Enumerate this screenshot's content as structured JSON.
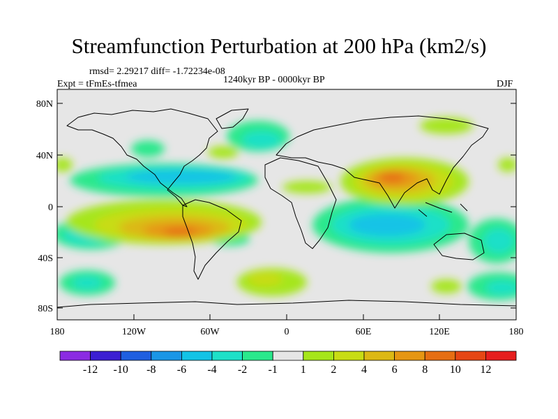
{
  "title": "Streamfunction Perturbation at 200 hPa (km2/s)",
  "stats": "rmsd= 2.29217 diff= -1.72234e-08",
  "experiment": "Expt = tFmEs-tfmea",
  "period": "1240kyr BP - 0000kyr BP",
  "season": "DJF",
  "y_axis_labels": [
    "80N",
    "40N",
    "0",
    "40S",
    "80S"
  ],
  "x_axis_labels": [
    "180",
    "120W",
    "60W",
    "0",
    "60E",
    "120E",
    "180"
  ],
  "colorbar": {
    "colors": [
      "#8b2be2",
      "#3c1fd2",
      "#1f5fe0",
      "#1a96e6",
      "#12c3e6",
      "#1ee0c8",
      "#2ae88c",
      "#e6e6e6",
      "#a6e61a",
      "#c8dc14",
      "#dcb814",
      "#e69612",
      "#e66e12",
      "#e64614",
      "#e61e1e"
    ],
    "labels": [
      "-12",
      "-10",
      "-8",
      "-6",
      "-4",
      "-2",
      "-1",
      "1",
      "2",
      "4",
      "6",
      "8",
      "10",
      "12"
    ]
  },
  "background_color": "#e6e6e6"
}
